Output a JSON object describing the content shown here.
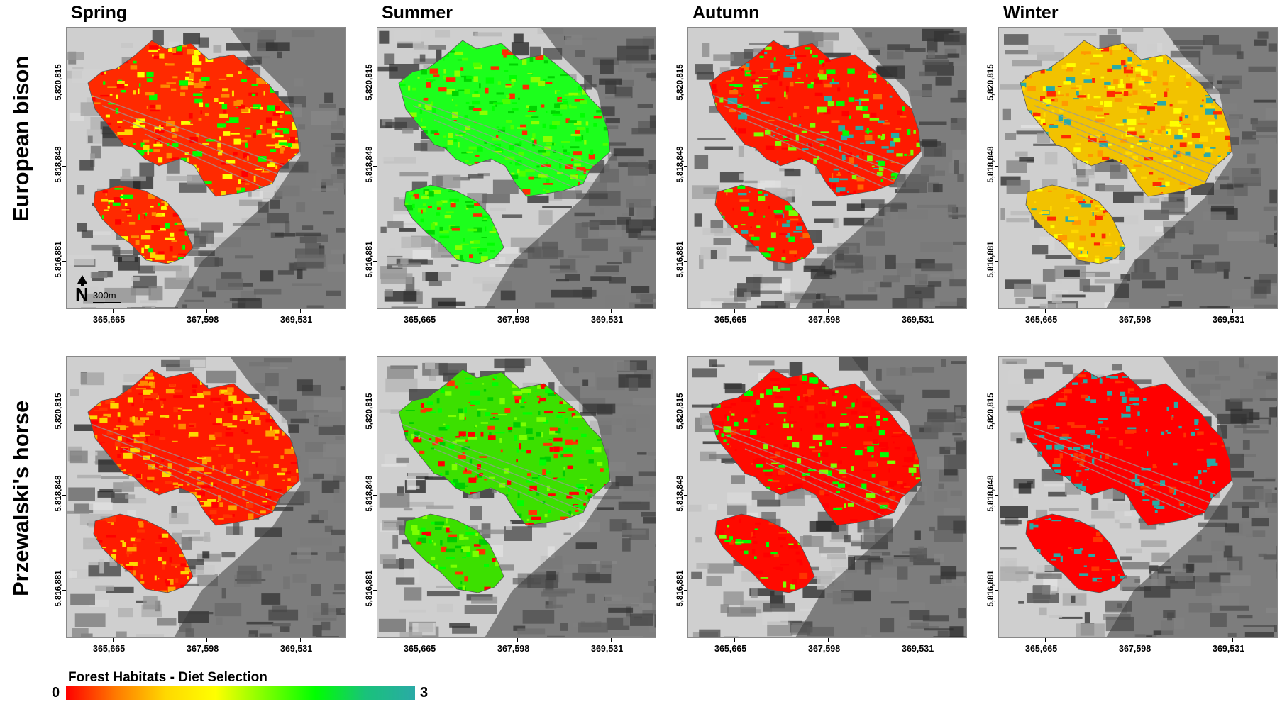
{
  "seasons": [
    "Spring",
    "Summer",
    "Autumn",
    "Winter"
  ],
  "species": [
    "European bison",
    "Przewalski's horse"
  ],
  "axes": {
    "x_ticks": [
      "365,665",
      "367,598",
      "369,531"
    ],
    "y_ticks": [
      "5,820,815",
      "5,818,848",
      "5,816,881"
    ]
  },
  "scale_bar": {
    "label": "300m"
  },
  "north_arrow": {
    "label": "N"
  },
  "legend": {
    "title": "Forest Habitats - Diet Selection",
    "min_label": "0",
    "max_label": "3",
    "colors": [
      "#ff0000",
      "#ff7a00",
      "#ffd800",
      "#ffff00",
      "#7dff00",
      "#00ff00",
      "#19c27a",
      "#2aaaa6"
    ]
  },
  "panels": [
    {
      "species": "European bison",
      "season": "Spring",
      "base_color": "#ff2a00",
      "mix": [
        "#ff0000",
        "#ffff00",
        "#ffd800",
        "#ff8800",
        "#00ff00"
      ]
    },
    {
      "species": "European bison",
      "season": "Summer",
      "base_color": "#1cff1c",
      "mix": [
        "#00ff00",
        "#4dff00",
        "#ff2a00",
        "#8cff00",
        "#00d400"
      ]
    },
    {
      "species": "European bison",
      "season": "Autumn",
      "base_color": "#ff1a00",
      "mix": [
        "#ff0000",
        "#00ff00",
        "#2aaaa6",
        "#ff6600",
        "#7dff00"
      ]
    },
    {
      "species": "European bison",
      "season": "Winter",
      "base_color": "#f2c200",
      "mix": [
        "#ffd800",
        "#ffff00",
        "#ff9900",
        "#2aaaa6",
        "#ff2a00"
      ]
    },
    {
      "species": "Przewalski's horse",
      "season": "Spring",
      "base_color": "#ff1a00",
      "mix": [
        "#ff0000",
        "#ff8800",
        "#ffa500",
        "#ff3300",
        "#ffd800"
      ]
    },
    {
      "species": "Przewalski's horse",
      "season": "Summer",
      "base_color": "#3ce000",
      "mix": [
        "#00ff00",
        "#ff0000",
        "#7dff00",
        "#00cc00",
        "#ff3300"
      ]
    },
    {
      "species": "Przewalski's horse",
      "season": "Autumn",
      "base_color": "#ff0a00",
      "mix": [
        "#ff0000",
        "#00ff00",
        "#ff3300",
        "#7dff00",
        "#ff0000"
      ]
    },
    {
      "species": "Przewalski's horse",
      "season": "Winter",
      "base_color": "#ff0000",
      "mix": [
        "#ff0000",
        "#2aaaa6",
        "#ff0000",
        "#2aaaa6",
        "#ff3300"
      ]
    }
  ]
}
